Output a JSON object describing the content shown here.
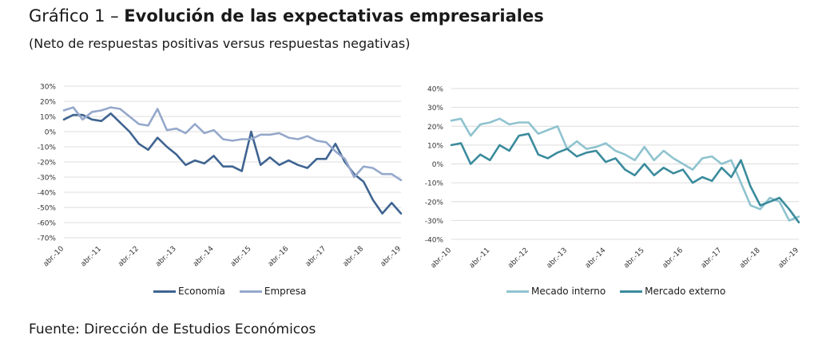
{
  "header": {
    "title_lead": "Gráfico 1 – ",
    "title_main": "Evolución de las expectativas empresariales",
    "subtitle": "(Neto de respuestas positivas versus respuestas negativas)"
  },
  "footer": {
    "source": "Fuente: Dirección de Estudios Económicos"
  },
  "chart_data": [
    {
      "type": "line",
      "title": "",
      "xlabel": "",
      "ylabel": "",
      "ylim": [
        -70,
        30
      ],
      "yticks": [
        30,
        20,
        10,
        0,
        -10,
        -20,
        -30,
        -40,
        -50,
        -60,
        -70
      ],
      "ytick_labels": [
        "30%",
        "20%",
        "10%",
        "0%",
        "-10%",
        "-20%",
        "-30%",
        "-40%",
        "-50%",
        "-60%",
        "-70%"
      ],
      "x_tick_labels": [
        "abr.-10",
        "abr.-11",
        "abr.-12",
        "abr.-13",
        "abr.-14",
        "abr.-15",
        "abr.-16",
        "abr.-17",
        "abr.-18",
        "abr.-19"
      ],
      "grid": true,
      "legend_position": "bottom",
      "x": [
        "abr-10",
        "jul-10",
        "oct-10",
        "ene-11",
        "abr-11",
        "jul-11",
        "oct-11",
        "ene-12",
        "abr-12",
        "jul-12",
        "oct-12",
        "ene-13",
        "abr-13",
        "jul-13",
        "oct-13",
        "ene-14",
        "abr-14",
        "jul-14",
        "oct-14",
        "ene-15",
        "abr-15",
        "jul-15",
        "oct-15",
        "ene-16",
        "abr-16",
        "jul-16",
        "oct-16",
        "ene-17",
        "abr-17",
        "jul-17",
        "oct-17",
        "ene-18",
        "abr-18",
        "jul-18",
        "oct-18",
        "ene-19",
        "abr-19"
      ],
      "series": [
        {
          "name": "Economía",
          "color": "#3f6491",
          "values": [
            8,
            11,
            11,
            8,
            7,
            12,
            6,
            0,
            -8,
            -12,
            -4,
            -10,
            -15,
            -22,
            -19,
            -21,
            -16,
            -23,
            -23,
            -26,
            0,
            -22,
            -17,
            -22,
            -19,
            -22,
            -24,
            -18,
            -18,
            -8,
            -20,
            -28,
            -33,
            -45,
            -54,
            -47,
            -54
          ]
        },
        {
          "name": "Empresa",
          "color": "#95a8cb",
          "values": [
            14,
            16,
            8,
            13,
            14,
            16,
            15,
            10,
            5,
            4,
            15,
            1,
            2,
            -1,
            5,
            -1,
            1,
            -5,
            -6,
            -5,
            -5,
            -2,
            -2,
            -1,
            -4,
            -5,
            -3,
            -6,
            -7,
            -13,
            -18,
            -30,
            -23,
            -24,
            -28,
            -28,
            -32
          ]
        }
      ]
    },
    {
      "type": "line",
      "title": "",
      "xlabel": "",
      "ylabel": "",
      "ylim": [
        -40,
        40
      ],
      "yticks": [
        40,
        30,
        20,
        10,
        0,
        -10,
        -20,
        -30,
        -40
      ],
      "ytick_labels": [
        "40%",
        "30%",
        "20%",
        "10%",
        "0%",
        "-10%",
        "-20%",
        "-30%",
        "-40%"
      ],
      "x_tick_labels": [
        "abr.-10",
        "abr.-11",
        "abr.-12",
        "abr.-13",
        "abr.-14",
        "abr.-15",
        "abr.-16",
        "abr.-17",
        "abr.-18",
        "abr.-19"
      ],
      "grid": true,
      "legend_position": "bottom",
      "x": [
        "abr-10",
        "jul-10",
        "oct-10",
        "ene-11",
        "abr-11",
        "jul-11",
        "oct-11",
        "ene-12",
        "abr-12",
        "jul-12",
        "oct-12",
        "ene-13",
        "abr-13",
        "jul-13",
        "oct-13",
        "ene-14",
        "abr-14",
        "jul-14",
        "oct-14",
        "ene-15",
        "abr-15",
        "jul-15",
        "oct-15",
        "ene-16",
        "abr-16",
        "jul-16",
        "oct-16",
        "ene-17",
        "abr-17",
        "jul-17",
        "oct-17",
        "ene-18",
        "abr-18",
        "jul-18",
        "oct-18",
        "ene-19",
        "abr-19"
      ],
      "series": [
        {
          "name": "Mecado interno",
          "color": "#8fc3cf",
          "values": [
            23,
            24,
            15,
            21,
            22,
            24,
            21,
            22,
            22,
            16,
            18,
            20,
            8,
            12,
            8,
            9,
            11,
            7,
            5,
            2,
            9,
            2,
            7,
            3,
            0,
            -3,
            3,
            4,
            0,
            2,
            -10,
            -22,
            -24,
            -18,
            -20,
            -30,
            -28
          ]
        },
        {
          "name": "Mercado externo",
          "color": "#3a8b9c",
          "values": [
            10,
            11,
            0,
            5,
            2,
            10,
            7,
            15,
            16,
            5,
            3,
            6,
            8,
            4,
            6,
            7,
            1,
            3,
            -3,
            -6,
            0,
            -6,
            -2,
            -5,
            -3,
            -10,
            -7,
            -9,
            -2,
            -7,
            2,
            -12,
            -22,
            -20,
            -18,
            -24,
            -31
          ]
        }
      ]
    }
  ]
}
